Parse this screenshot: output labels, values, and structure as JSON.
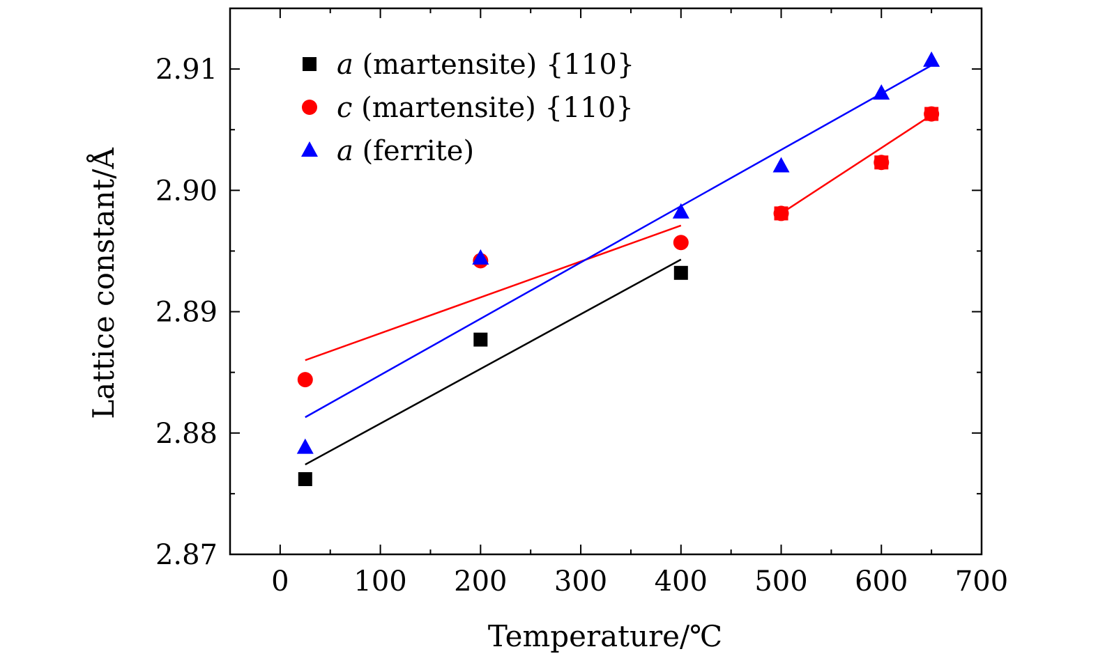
{
  "chart_data": {
    "type": "scatter",
    "title": "",
    "xlabel": "Temperature/℃",
    "ylabel": "Lattice constant/Å",
    "xlim": [
      -50,
      700
    ],
    "ylim": [
      2.87,
      2.915
    ],
    "xticks": [
      0,
      100,
      200,
      300,
      400,
      500,
      600,
      700
    ],
    "xtick_labels": [
      "0",
      "100",
      "200",
      "300",
      "400",
      "500",
      "600",
      "700"
    ],
    "yticks": [
      2.87,
      2.88,
      2.89,
      2.9,
      2.91
    ],
    "ytick_labels": [
      "2.87",
      "2.88",
      "2.89",
      "2.90",
      "2.91"
    ],
    "grid": false,
    "legend_position": "top-left",
    "series": [
      {
        "name": "a (martensite) {110}",
        "legend_var": "a",
        "legend_rest": " (martensite) {110}",
        "marker": "square",
        "color": "#000000",
        "x": [
          25,
          200,
          400
        ],
        "y": [
          2.8762,
          2.8877,
          2.8932
        ],
        "fit": [
          [
            25,
            2.8774
          ],
          [
            400,
            2.8943
          ]
        ]
      },
      {
        "name": "c (martensite) {110}",
        "legend_var": "c",
        "legend_rest": " (martensite) {110}",
        "marker": "circle",
        "color": "#ff0000",
        "x": [
          25,
          200,
          400,
          500,
          600,
          650
        ],
        "y": [
          2.8844,
          2.8942,
          2.8957,
          2.8981,
          2.9023,
          2.9063
        ],
        "fit": [
          [
            25,
            2.886
          ],
          [
            400,
            2.8971
          ],
          [
            500,
            2.8981
          ],
          [
            650,
            2.9062
          ]
        ]
      },
      {
        "name": "a (ferrite)",
        "legend_var": "a",
        "legend_rest": " (ferrite)",
        "marker": "triangle",
        "color": "#0000ff",
        "x": [
          25,
          200,
          400,
          500,
          600,
          650
        ],
        "y": [
          2.8788,
          2.8944,
          2.8982,
          2.902,
          2.908,
          2.9107
        ],
        "fit": [
          [
            25,
            2.8813
          ],
          [
            650,
            2.9103
          ]
        ]
      }
    ],
    "overlay_markers": [
      {
        "marker": "square",
        "color": "#ff0000",
        "x": 500,
        "y": 2.8981
      },
      {
        "marker": "square",
        "color": "#ff0000",
        "x": 600,
        "y": 2.9023
      },
      {
        "marker": "square",
        "color": "#ff0000",
        "x": 650,
        "y": 2.9063
      }
    ]
  }
}
